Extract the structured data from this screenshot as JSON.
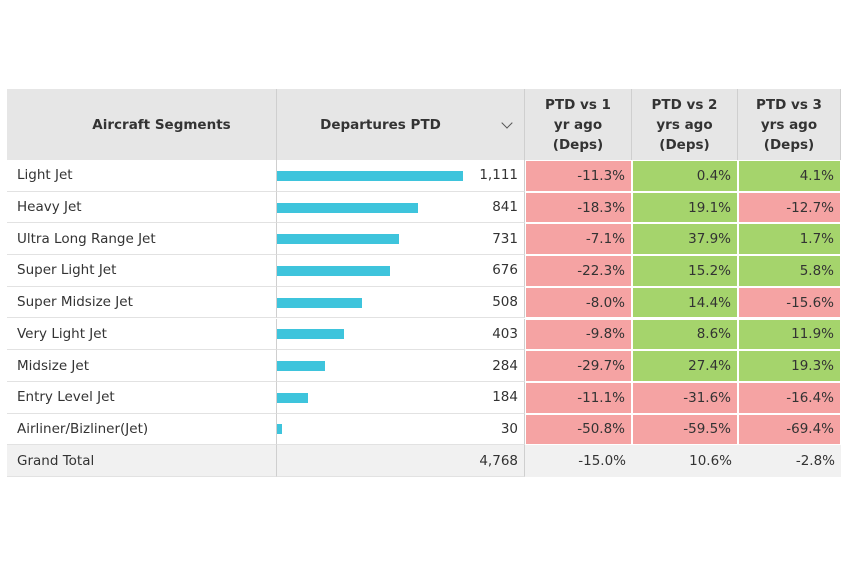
{
  "table": {
    "headers": [
      "Aircraft Segments",
      "Departures PTD",
      "PTD vs 1 yr ago (Deps)",
      "PTD vs 2 yrs ago (Deps)",
      "PTD vs 3 yrs ago (Deps)"
    ],
    "rows": [
      [
        "Light Jet",
        {
          "value": 1111,
          "label": "1,111"
        },
        "-11.3%",
        "0.4%",
        "4.1%"
      ],
      [
        "Heavy Jet",
        841,
        "-18.3%",
        "19.1%",
        "-12.7%"
      ],
      [
        "Ultra Long Range Jet",
        731,
        "-7.1%",
        "37.9%",
        "1.7%"
      ],
      [
        "Super Light Jet",
        676,
        "-22.3%",
        "15.2%",
        "5.8%"
      ],
      [
        "Super Midsize Jet",
        508,
        "-8.0%",
        "14.4%",
        "-15.6%"
      ],
      [
        "Very Light Jet",
        403,
        "-9.8%",
        "8.6%",
        "11.9%"
      ],
      [
        "Midsize Jet",
        284,
        "-29.7%",
        "27.4%",
        "19.3%"
      ],
      [
        "Entry Level Jet",
        184,
        "-11.1%",
        "-31.6%",
        "-16.4%"
      ],
      [
        "Airliner/Bizliner(Jet)",
        30,
        "-50.8%",
        "-59.5%",
        "-69.4%"
      ]
    ],
    "total": [
      "Grand Total",
      "4,768",
      "-15.0%",
      "10.6%",
      "-2.8%"
    ]
  }
}
